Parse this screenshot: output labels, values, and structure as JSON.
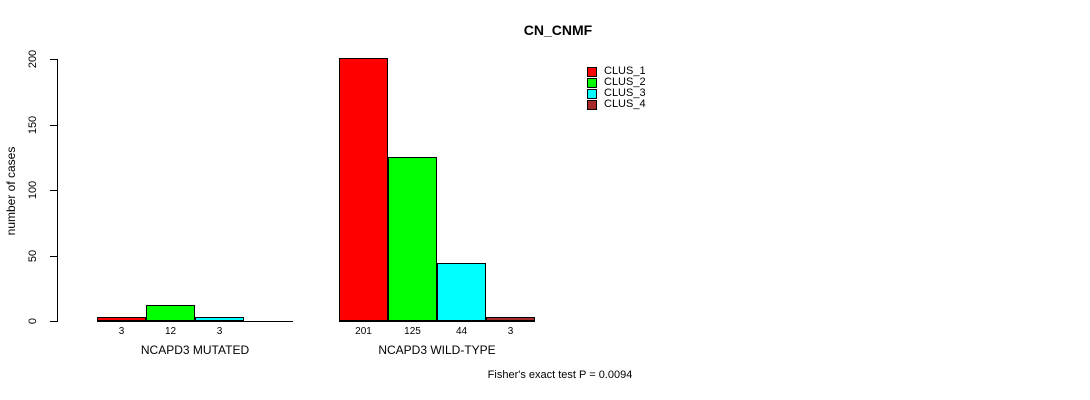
{
  "chart_data": {
    "type": "bar",
    "title": "CN_CNMF",
    "ylabel": "number of cases",
    "xlabel": "",
    "ylim": [
      0,
      200
    ],
    "yticks": [
      0,
      50,
      100,
      150,
      200
    ],
    "grid": false,
    "legend_position": "right",
    "annotation": "Fisher's exact test P = 0.0094",
    "series": [
      {
        "name": "CLUS_1",
        "color": "#FF0000"
      },
      {
        "name": "CLUS_2",
        "color": "#00FF00"
      },
      {
        "name": "CLUS_3",
        "color": "#00FFFF"
      },
      {
        "name": "CLUS_4",
        "color": "#A52A2A"
      }
    ],
    "groups": [
      {
        "label": "NCAPD3 MUTATED",
        "values": [
          3,
          12,
          3,
          0
        ],
        "bar_labels": [
          "3",
          "12",
          "3",
          ""
        ]
      },
      {
        "label": "NCAPD3 WILD-TYPE",
        "values": [
          201,
          125,
          44,
          3
        ],
        "bar_labels": [
          "201",
          "125",
          "44",
          "3"
        ]
      }
    ]
  }
}
